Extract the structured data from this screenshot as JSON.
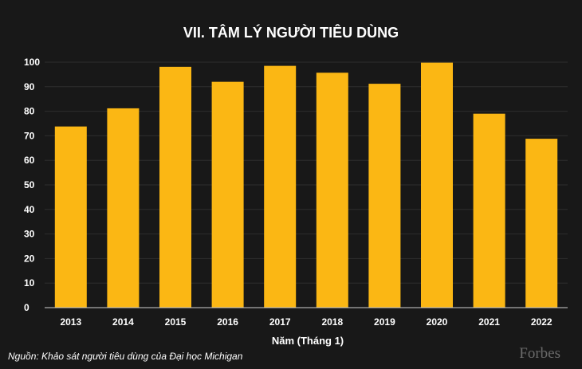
{
  "chart_data": {
    "type": "bar",
    "title": "VII. TÂM LÝ NGƯỜI TIÊU DÙNG",
    "xlabel": "Năm (Tháng 1)",
    "ylabel": "",
    "categories": [
      "2013",
      "2014",
      "2015",
      "2016",
      "2017",
      "2018",
      "2019",
      "2020",
      "2021",
      "2022"
    ],
    "values": [
      73.8,
      81.2,
      98.1,
      92.0,
      98.5,
      95.7,
      91.2,
      99.8,
      79.0,
      68.8
    ],
    "ylim": [
      0,
      100
    ],
    "yticks": [
      "0",
      "10",
      "20",
      "30",
      "40",
      "50",
      "60",
      "70",
      "80",
      "90",
      "100"
    ],
    "grid": true,
    "bar_color": "#fbb714",
    "background": "#181818"
  },
  "footer": {
    "source": "Nguồn: Khảo sát người tiêu dùng của Đại học Michigan",
    "brand": "Forbes"
  }
}
